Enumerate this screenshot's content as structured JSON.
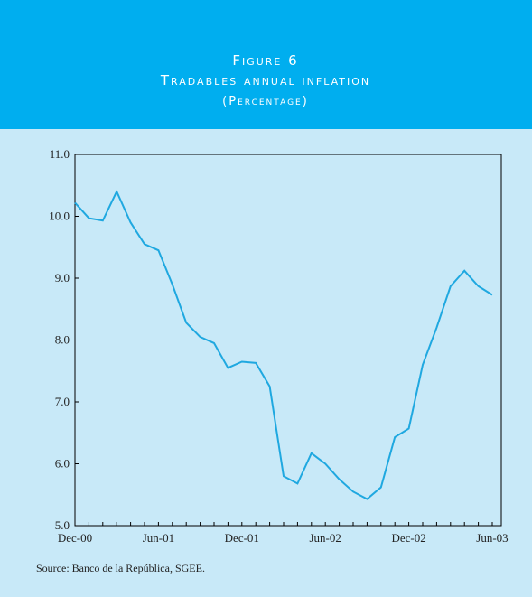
{
  "chart_data": {
    "type": "line",
    "title": "Figure 6",
    "subtitle": "Tradables annual inflation",
    "unit_note": "(Percentage)",
    "source": "Source: Banco de la República, SGEE.",
    "categories": [
      "Dec-00",
      null,
      null,
      null,
      null,
      null,
      "Jun-01",
      null,
      null,
      null,
      null,
      null,
      "Dec-01",
      null,
      null,
      null,
      null,
      null,
      "Jun-02",
      null,
      null,
      null,
      null,
      null,
      "Dec-02",
      null,
      null,
      null,
      null,
      null,
      "Jun-03"
    ],
    "series": [
      {
        "name": "Tradables annual inflation",
        "color": "#1fa8e0",
        "values": [
          10.22,
          9.97,
          9.93,
          10.4,
          9.9,
          9.55,
          9.45,
          8.9,
          8.28,
          8.05,
          7.95,
          7.55,
          7.65,
          7.63,
          7.25,
          5.8,
          5.68,
          6.17,
          6.0,
          5.75,
          5.55,
          5.43,
          5.62,
          6.43,
          6.57,
          7.6,
          8.2,
          8.87,
          9.12,
          8.87,
          8.73
        ]
      }
    ],
    "ylim": [
      5,
      11
    ],
    "yticks": [
      {
        "value": 5,
        "label": "5.0"
      },
      {
        "value": 6,
        "label": "6.0"
      },
      {
        "value": 7,
        "label": "7.0"
      },
      {
        "value": 8,
        "label": "8.0"
      },
      {
        "value": 9,
        "label": "9.0"
      },
      {
        "value": 10,
        "label": "10.0"
      },
      {
        "value": 11,
        "label": "11.0"
      }
    ],
    "grid": false
  }
}
